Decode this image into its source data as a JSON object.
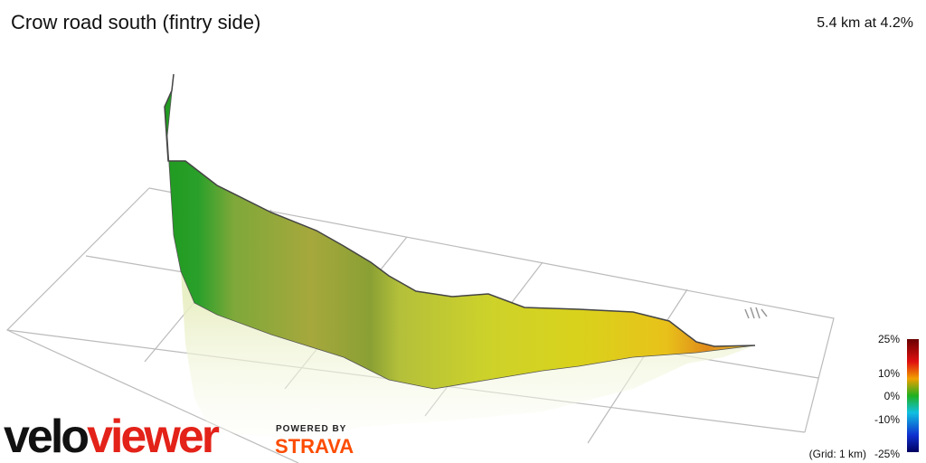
{
  "header": {
    "title": "Crow road south (fintry side)",
    "summary": "5.4 km at 4.2%"
  },
  "legend": {
    "labels": [
      "25%",
      "10%",
      "0%",
      "-10%",
      "-25%"
    ],
    "grid_note": "(Grid: 1 km)"
  },
  "branding": {
    "logo": [
      "velo",
      "viewer"
    ],
    "powered_by": "POWERED BY",
    "partner": "STRAVA"
  }
}
